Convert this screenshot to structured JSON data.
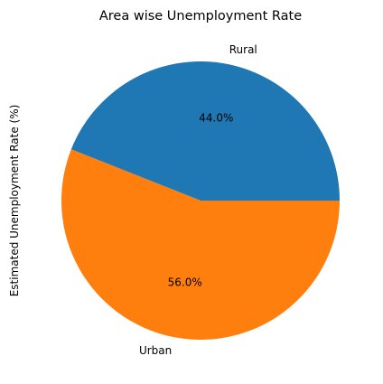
{
  "chart_data": {
    "type": "pie",
    "title": "Area wise Unemployment Rate",
    "ylabel": "Estimated Unemployment Rate (%)",
    "categories": [
      "Rural",
      "Urban"
    ],
    "values": [
      44.0,
      56.0
    ],
    "percent_labels": [
      "44.0%",
      "56.0%"
    ],
    "colors": [
      "#1f77b4",
      "#ff7f0e"
    ],
    "start_angle": "0° (3 o'clock)",
    "direction": "counterclockwise",
    "legend": "none"
  }
}
